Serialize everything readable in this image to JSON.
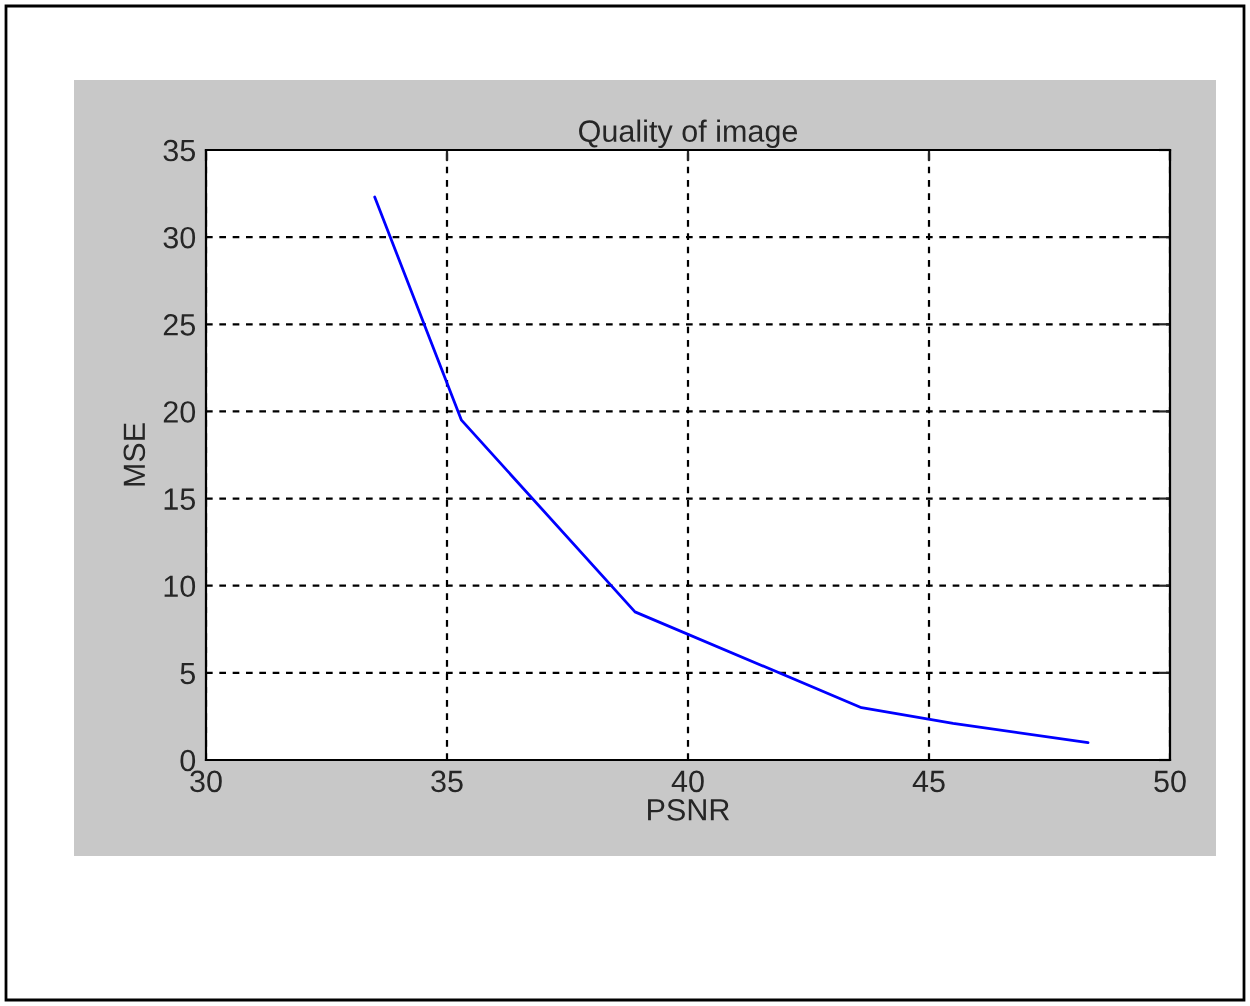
{
  "chart_data": {
    "type": "line",
    "title": "Quality of image",
    "xlabel": "PSNR",
    "ylabel": "MSE",
    "series": [
      {
        "color": "#0000ff",
        "x": [
          33.5,
          35.3,
          38.9,
          43.6,
          45.5,
          48.3
        ],
        "values": [
          32.3,
          19.5,
          8.5,
          3.0,
          2.1,
          1.0
        ]
      }
    ],
    "xlim": [
      30,
      50
    ],
    "xticks": [
      30,
      35,
      40,
      45,
      50
    ],
    "ylim": [
      0,
      35
    ],
    "yticks": [
      0,
      5,
      10,
      15,
      20,
      25,
      30,
      35
    ],
    "grid": true,
    "line_style": "solid",
    "marker": "none",
    "legend": false
  }
}
